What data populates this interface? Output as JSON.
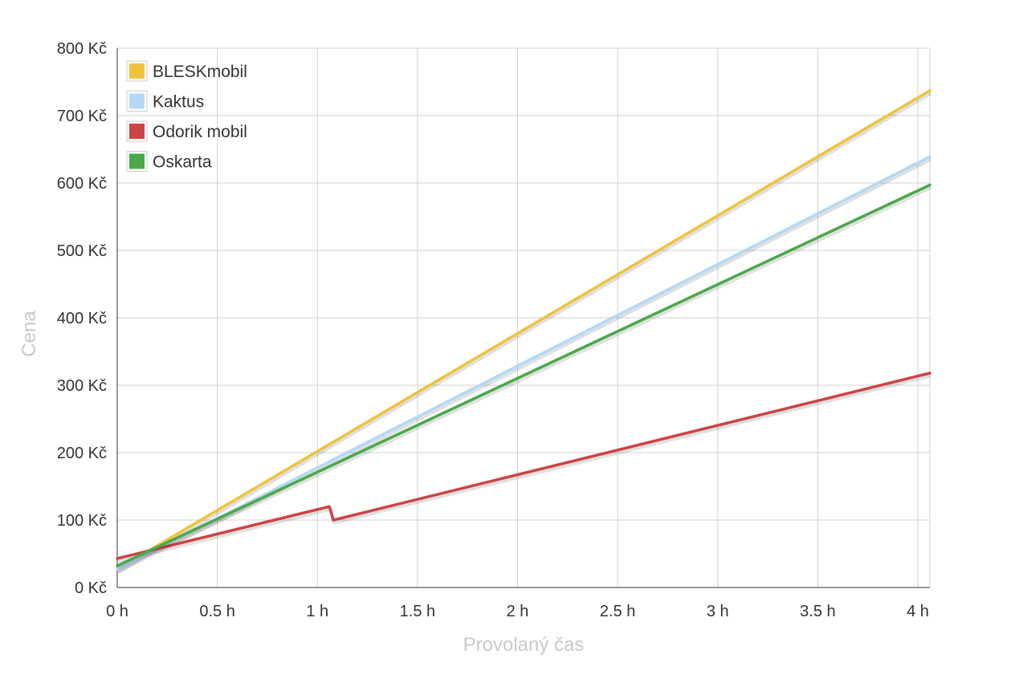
{
  "chart_data": {
    "type": "line",
    "title": "",
    "xlabel": "Provolaný čas",
    "ylabel": "Cena",
    "xlim": [
      0,
      4.06
    ],
    "ylim": [
      0,
      800
    ],
    "x_ticks": [
      {
        "value": 0,
        "label": "0 h"
      },
      {
        "value": 0.5,
        "label": "0.5 h"
      },
      {
        "value": 1,
        "label": "1 h"
      },
      {
        "value": 1.5,
        "label": "1.5 h"
      },
      {
        "value": 2,
        "label": "2 h"
      },
      {
        "value": 2.5,
        "label": "2.5 h"
      },
      {
        "value": 3,
        "label": "3 h"
      },
      {
        "value": 3.5,
        "label": "3.5 h"
      },
      {
        "value": 4,
        "label": "4 h"
      }
    ],
    "y_ticks": [
      {
        "value": 0,
        "label": "0 Kč"
      },
      {
        "value": 100,
        "label": "100 Kč"
      },
      {
        "value": 200,
        "label": "200 Kč"
      },
      {
        "value": 300,
        "label": "300 Kč"
      },
      {
        "value": 400,
        "label": "400 Kč"
      },
      {
        "value": 500,
        "label": "500 Kč"
      },
      {
        "value": 600,
        "label": "600 Kč"
      },
      {
        "value": 700,
        "label": "700 Kč"
      },
      {
        "value": 800,
        "label": "800 Kč"
      }
    ],
    "grid": true,
    "legend_position": "top-left",
    "series": [
      {
        "name": "BLESKmobil",
        "color": "#f0c33c",
        "points": [
          [
            0,
            27
          ],
          [
            4.06,
            737
          ]
        ]
      },
      {
        "name": "Kaktus",
        "color": "#b3d9f7",
        "points": [
          [
            0,
            27
          ],
          [
            4.06,
            639
          ]
        ]
      },
      {
        "name": "Odorik mobil",
        "color": "#cc4444",
        "points": [
          [
            0,
            43
          ],
          [
            1.06,
            120
          ],
          [
            1.08,
            100
          ],
          [
            4.06,
            318
          ]
        ]
      },
      {
        "name": "Oskarta",
        "color": "#4aa84a",
        "points": [
          [
            0,
            32
          ],
          [
            4.06,
            597
          ]
        ]
      }
    ]
  }
}
